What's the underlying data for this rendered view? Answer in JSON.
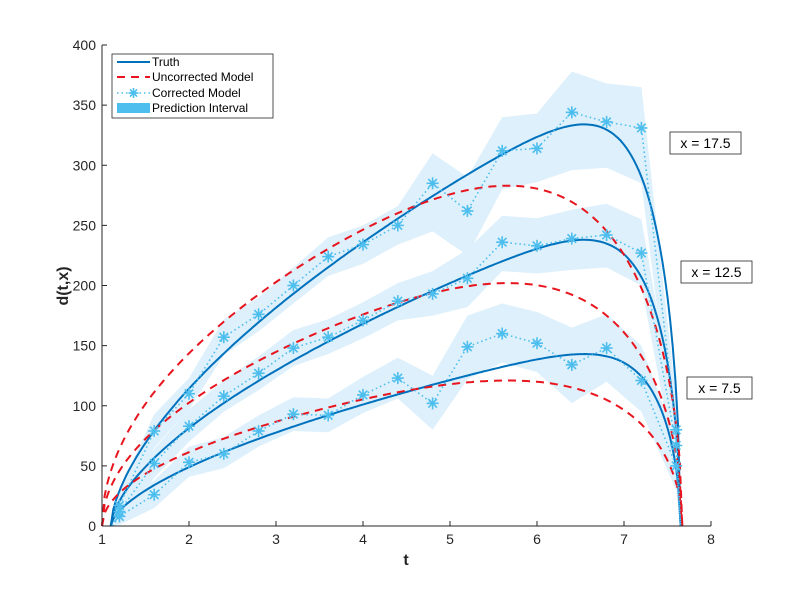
{
  "chart_data": {
    "type": "line",
    "title": "",
    "xlabel": "t",
    "ylabel": "d(t,x)",
    "xlim": [
      1,
      8
    ],
    "ylim": [
      0,
      400
    ],
    "xticks": [
      1,
      2,
      3,
      4,
      5,
      6,
      7,
      8
    ],
    "yticks": [
      0,
      50,
      100,
      150,
      200,
      250,
      300,
      350,
      400
    ],
    "grid": false,
    "legend": {
      "placement": "top-left",
      "entries": [
        {
          "label": "Truth",
          "style": "solid",
          "color": "#0072BD"
        },
        {
          "label": "Uncorrected Model",
          "style": "dashed",
          "color": "#FF0000"
        },
        {
          "label": "Corrected Model",
          "style": "dotted-asterisk",
          "color": "#4DBEEE"
        },
        {
          "label": "Prediction Interval",
          "style": "fill",
          "color": "#4DBEEE"
        }
      ]
    },
    "colors": {
      "truth": "#0072BD",
      "uncorrected": "#E8141E",
      "corrected": "#4DBEEE",
      "interval": "#DDF0FB"
    },
    "corrected_t": [
      1.2,
      1.6,
      2.0,
      2.4,
      2.8,
      3.2,
      3.6,
      4.0,
      4.4,
      4.8,
      5.2,
      5.6,
      6.0,
      6.4,
      6.8,
      7.2,
      7.6
    ],
    "series": [
      {
        "name": "x = 17.5",
        "annotation": "x = 17.5",
        "truth_peak": 334,
        "uncorrected_peak": 283,
        "t_end": 7.65,
        "corrected": [
          17,
          79,
          110,
          157,
          176,
          200,
          224,
          234,
          250,
          285,
          262,
          312,
          314,
          344,
          336,
          331,
          80
        ],
        "interval_lower": [
          5,
          65,
          97,
          142,
          162,
          185,
          208,
          218,
          234,
          245,
          225,
          280,
          286,
          296,
          298,
          285,
          55
        ],
        "interval_upper": [
          30,
          93,
          123,
          172,
          190,
          215,
          240,
          250,
          266,
          310,
          290,
          340,
          343,
          378,
          368,
          365,
          105
        ]
      },
      {
        "name": "x = 12.5",
        "annotation": "x = 12.5",
        "truth_peak": 238,
        "uncorrected_peak": 202,
        "t_end": 7.65,
        "corrected": [
          12,
          52,
          83,
          108,
          127,
          148,
          157,
          171,
          187,
          193,
          206,
          236,
          233,
          239,
          242,
          227,
          67
        ],
        "interval_lower": [
          3,
          40,
          70,
          95,
          113,
          133,
          143,
          156,
          171,
          175,
          182,
          212,
          210,
          213,
          215,
          200,
          45
        ],
        "interval_upper": [
          22,
          64,
          97,
          121,
          141,
          163,
          172,
          186,
          202,
          212,
          230,
          258,
          256,
          263,
          268,
          255,
          90
        ]
      },
      {
        "name": "x = 7.5",
        "annotation": "x = 7.5",
        "truth_peak": 143,
        "uncorrected_peak": 121,
        "t_end": 7.65,
        "corrected": [
          8,
          26,
          53,
          60,
          79,
          93,
          92,
          109,
          123,
          102,
          149,
          160,
          152,
          134,
          148,
          121,
          50
        ],
        "interval_lower": [
          1,
          15,
          41,
          48,
          66,
          79,
          78,
          94,
          106,
          80,
          122,
          136,
          128,
          102,
          120,
          95,
          30
        ],
        "interval_upper": [
          18,
          38,
          66,
          74,
          92,
          107,
          106,
          124,
          140,
          125,
          175,
          185,
          178,
          165,
          176,
          150,
          70
        ]
      }
    ]
  }
}
